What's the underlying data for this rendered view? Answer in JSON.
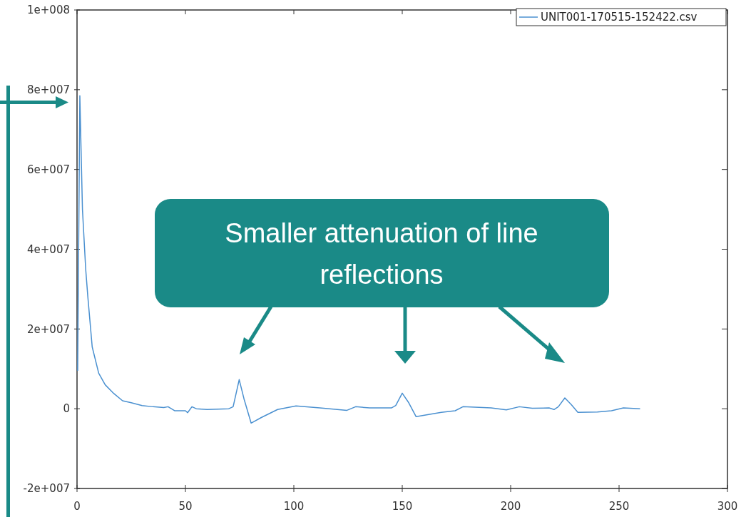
{
  "chart_data": {
    "type": "line",
    "legend": "top right",
    "grid": false,
    "xlim": [
      0,
      300
    ],
    "xticks": [
      0,
      50,
      100,
      150,
      200,
      250,
      300
    ],
    "ylim": [
      -20000000,
      100000000
    ],
    "yticks": [
      {
        "value": -20000000,
        "label": "-2e+007"
      },
      0,
      {
        "value": 20000000,
        "label": "2e+007"
      },
      {
        "value": 40000000,
        "label": "4e+007"
      },
      {
        "value": 60000000,
        "label": "6e+007"
      },
      {
        "value": 80000000,
        "label": "8e+007"
      },
      {
        "value": 100000000,
        "label": "1e+008"
      }
    ],
    "annotations": [
      "Smaller attenuation of line reflections"
    ],
    "series": [
      {
        "name": "UNIT001-170515-152422.csv",
        "color": "#4a90d0",
        "x": [
          0.3,
          1.3,
          2.5,
          4,
          5,
          7,
          10,
          13,
          17,
          21,
          25,
          30,
          35,
          40,
          42,
          45,
          50,
          51,
          53,
          55,
          60,
          70,
          72,
          74.8,
          77,
          80.3,
          85,
          92.5,
          101,
          112,
          124.5,
          128.5,
          135,
          145,
          147,
          150,
          153,
          156.4,
          168,
          174.4,
          178,
          191,
          198,
          204,
          210,
          217.7,
          220,
          222,
          225,
          228,
          231,
          240,
          246.5,
          252,
          259.7
        ],
        "values": [
          9500000,
          78500000,
          50000000,
          35000000,
          28000000,
          15500000,
          8900000,
          6000000,
          3800000,
          2000000,
          1500000,
          800000,
          500000,
          300000,
          500000,
          -500000,
          -500000,
          -1000000,
          500000,
          0,
          -200000,
          0,
          500000,
          7300000,
          2500000,
          -3600000,
          -2200000,
          -200000,
          700000,
          200000,
          -400000,
          500000,
          200000,
          200000,
          800000,
          3900000,
          1500000,
          -2000000,
          -900000,
          -500000,
          500000,
          200000,
          -300000,
          500000,
          100000,
          200000,
          -200000,
          500000,
          2700000,
          1000000,
          -900000,
          -800000,
          -500000,
          200000,
          0
        ]
      }
    ]
  }
}
